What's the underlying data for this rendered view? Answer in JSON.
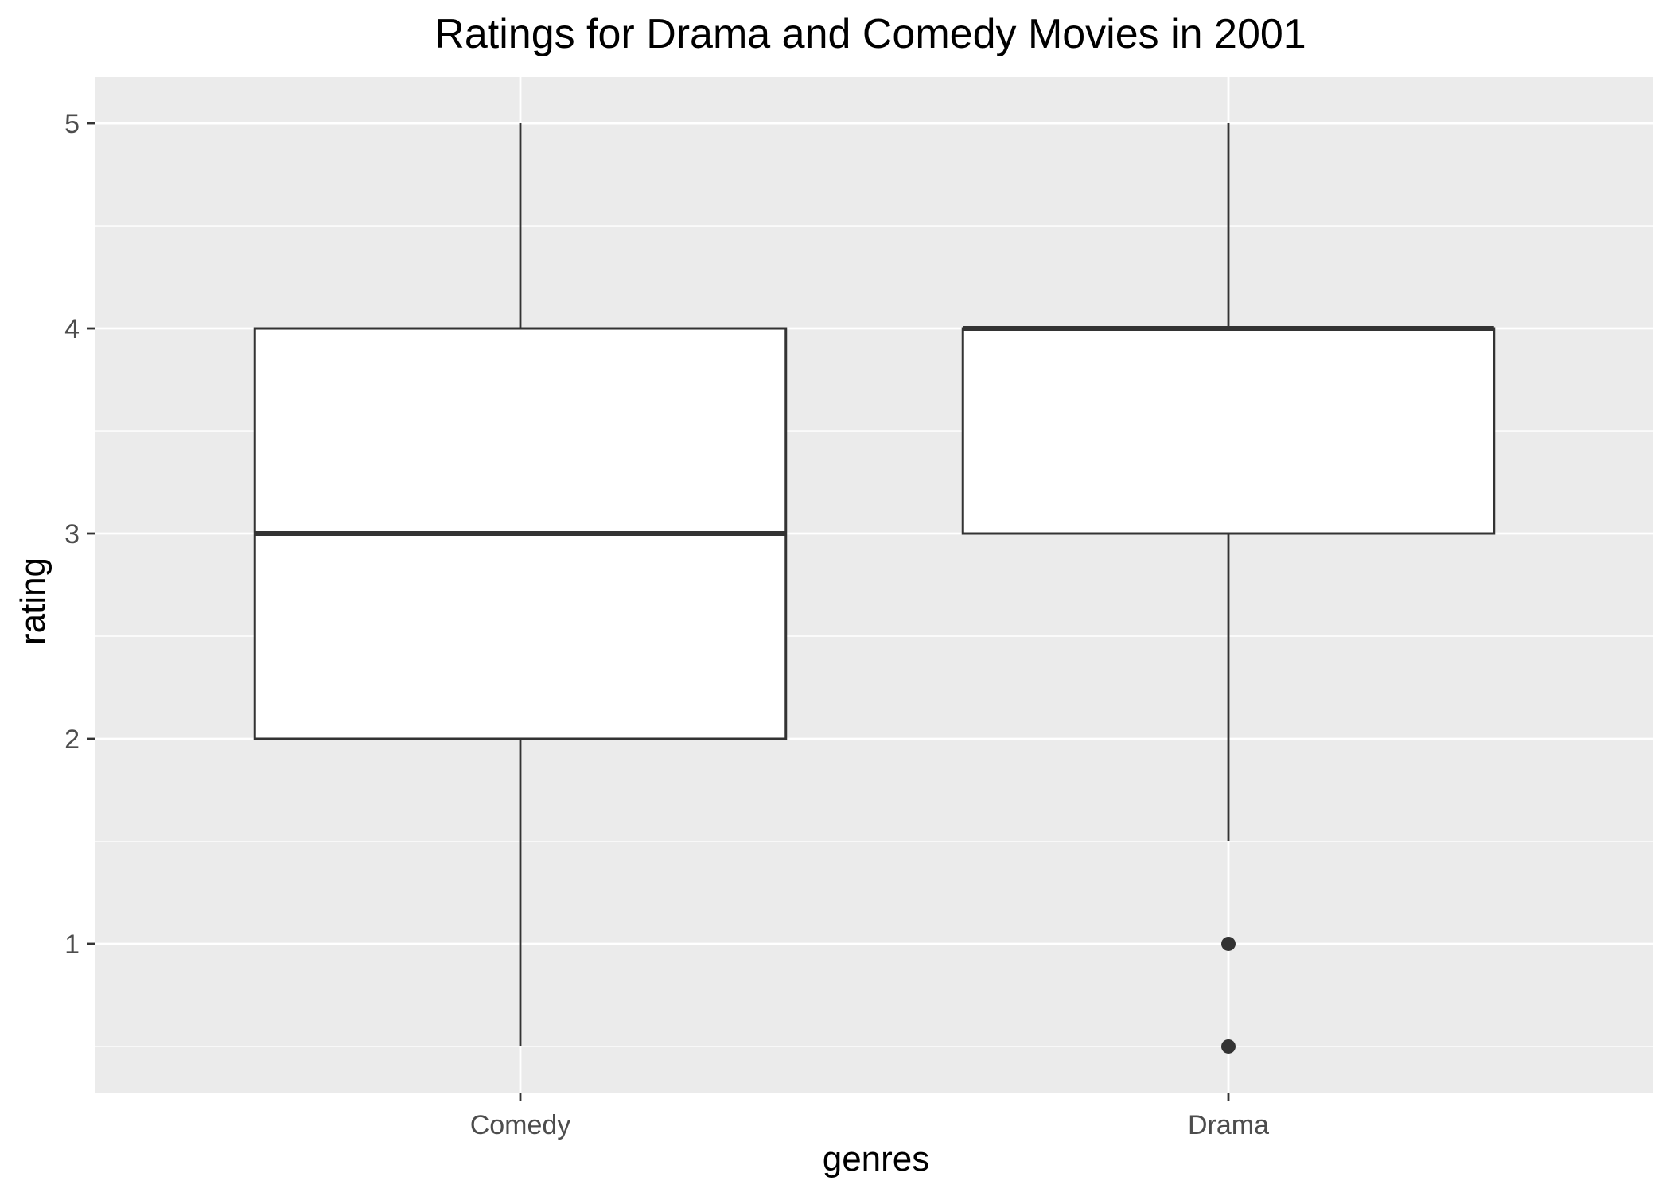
{
  "chart_data": {
    "type": "boxplot",
    "title": "Ratings for Drama and Comedy Movies in 2001",
    "xlabel": "genres",
    "ylabel": "rating",
    "ylim": [
      0.275,
      5.225
    ],
    "yticks": [
      1,
      2,
      3,
      4,
      5
    ],
    "ygrid_minor": [
      0.5,
      1.5,
      2.5,
      3.5,
      4.5
    ],
    "grid": true,
    "legend": "none",
    "colors": {
      "panel": "#ebebeb",
      "grid": "#ffffff",
      "box_fill": "#ffffff",
      "box_line": "#333333",
      "outlier": "#333333",
      "tick": "#333333"
    },
    "categories": [
      "Comedy",
      "Drama"
    ],
    "series": [
      {
        "category": "Comedy",
        "whisker_low": 0.5,
        "q1": 2,
        "median": 3,
        "q3": 4,
        "whisker_high": 5,
        "outliers": []
      },
      {
        "category": "Drama",
        "whisker_low": 1.5,
        "q1": 3,
        "median": 4,
        "q3": 4,
        "whisker_high": 5,
        "outliers": [
          1,
          0.5
        ]
      }
    ]
  }
}
